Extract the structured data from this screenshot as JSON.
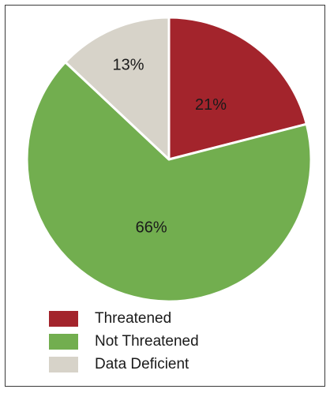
{
  "chart_data": {
    "type": "pie",
    "categories": [
      "Threatened",
      "Not Threatened",
      "Data Deficient"
    ],
    "values": [
      21,
      66,
      13
    ],
    "labels": [
      "21%",
      "66%",
      "13%"
    ],
    "colors": [
      "#a3242c",
      "#72ae4f",
      "#d7d3c9"
    ],
    "legend_position": "bottom-left",
    "title": ""
  }
}
